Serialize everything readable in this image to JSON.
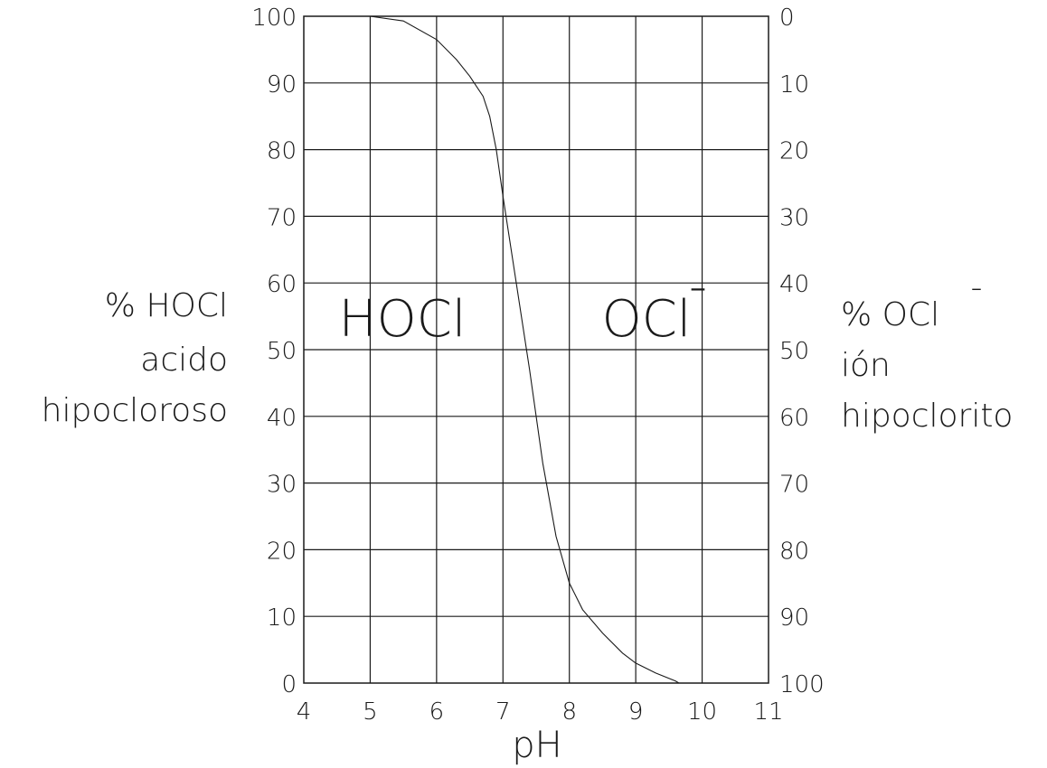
{
  "chart_data": {
    "type": "line",
    "title": "",
    "xlabel": "pH",
    "ylabel_left": [
      "% HOCl",
      "acido",
      "hipocloroso"
    ],
    "ylabel_right": [
      "% OCl",
      "ión",
      "hipoclorito"
    ],
    "right_axis_superscript": "-",
    "xlim": [
      4,
      11
    ],
    "ylim": [
      0,
      100
    ],
    "x_ticks": [
      4,
      5,
      6,
      7,
      8,
      9,
      10,
      11
    ],
    "y_ticks_left": [
      0,
      10,
      20,
      30,
      40,
      50,
      60,
      70,
      80,
      90,
      100
    ],
    "y_ticks_right": [
      100,
      90,
      80,
      70,
      60,
      50,
      40,
      30,
      20,
      10,
      0
    ],
    "grid": true,
    "annotations": [
      {
        "text": "HOCl",
        "x": 5.9,
        "y": 55
      },
      {
        "text": "OCl",
        "superscript": "-",
        "x": 8.9,
        "y": 55
      }
    ],
    "series": [
      {
        "x": [
          5.0,
          5.5,
          6.0,
          6.3,
          6.5,
          6.7,
          6.8,
          6.9,
          7.0,
          7.2,
          7.4,
          7.6,
          7.8,
          8.0,
          8.2,
          8.5,
          8.8,
          9.0,
          9.3,
          9.6,
          9.65
        ],
        "y": [
          100,
          99.3,
          96.5,
          93.5,
          91.0,
          88.0,
          85.0,
          80.0,
          73.0,
          60.0,
          47.0,
          33.0,
          22.0,
          15.0,
          11.0,
          7.5,
          4.5,
          3.0,
          1.5,
          0.3,
          0
        ]
      }
    ],
    "colors": {
      "line": "#1a1a1a",
      "background": "#ffffff"
    }
  }
}
